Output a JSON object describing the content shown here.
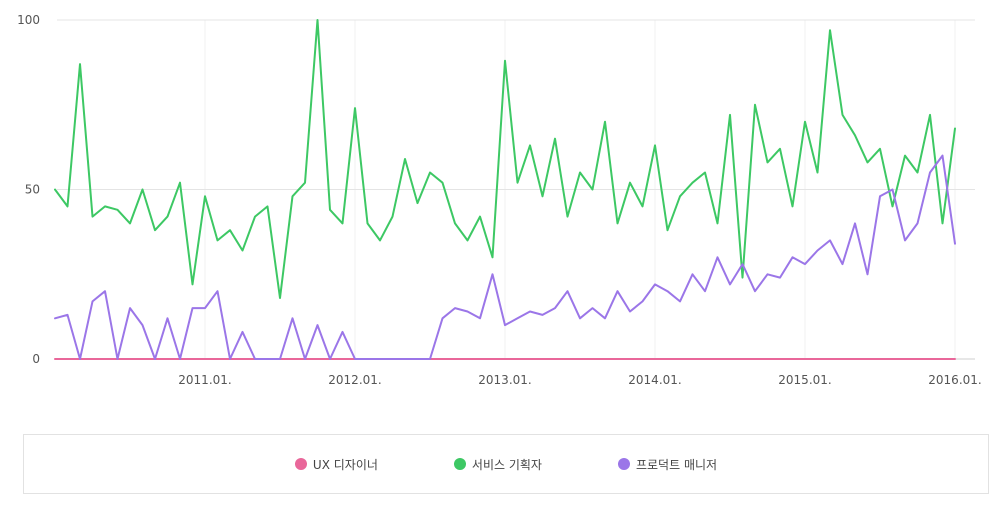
{
  "chart_data": {
    "type": "line",
    "ylim": [
      0,
      100
    ],
    "y_ticks": [
      "0",
      "50",
      "100"
    ],
    "x_range": [
      "2010-01",
      "2016-01"
    ],
    "x_ticks": [
      {
        "label": "2011.01.",
        "value": "2011-01"
      },
      {
        "label": "2012.01.",
        "value": "2012-01"
      },
      {
        "label": "2013.01.",
        "value": "2013-01"
      },
      {
        "label": "2014.01.",
        "value": "2014-01"
      },
      {
        "label": "2015.01.",
        "value": "2015-01"
      },
      {
        "label": "2016.01.",
        "value": "2016-01"
      }
    ],
    "grid": true,
    "legend_position": "bottom",
    "x": [
      "2010-01",
      "2010-02",
      "2010-03",
      "2010-04",
      "2010-05",
      "2010-06",
      "2010-07",
      "2010-08",
      "2010-09",
      "2010-10",
      "2010-11",
      "2010-12",
      "2011-01",
      "2011-02",
      "2011-03",
      "2011-04",
      "2011-05",
      "2011-06",
      "2011-07",
      "2011-08",
      "2011-09",
      "2011-10",
      "2011-11",
      "2011-12",
      "2012-01",
      "2012-02",
      "2012-03",
      "2012-04",
      "2012-05",
      "2012-06",
      "2012-07",
      "2012-08",
      "2012-09",
      "2012-10",
      "2012-11",
      "2012-12",
      "2013-01",
      "2013-02",
      "2013-03",
      "2013-04",
      "2013-05",
      "2013-06",
      "2013-07",
      "2013-08",
      "2013-09",
      "2013-10",
      "2013-11",
      "2013-12",
      "2014-01",
      "2014-02",
      "2014-03",
      "2014-04",
      "2014-05",
      "2014-06",
      "2014-07",
      "2014-08",
      "2014-09",
      "2014-10",
      "2014-11",
      "2014-12",
      "2015-01",
      "2015-02",
      "2015-03",
      "2015-04",
      "2015-05",
      "2015-06",
      "2015-07",
      "2015-08",
      "2015-09",
      "2015-10",
      "2015-11",
      "2015-12",
      "2016-01"
    ],
    "series": [
      {
        "name": "UX 디자이너",
        "color": "#e9679a",
        "values": [
          0,
          0,
          0,
          0,
          0,
          0,
          0,
          0,
          0,
          0,
          0,
          0,
          0,
          0,
          0,
          0,
          0,
          0,
          0,
          0,
          0,
          0,
          0,
          0,
          0,
          0,
          0,
          0,
          0,
          0,
          0,
          0,
          0,
          0,
          0,
          0,
          0,
          0,
          0,
          0,
          0,
          0,
          0,
          0,
          0,
          0,
          0,
          0,
          0,
          0,
          0,
          0,
          0,
          0,
          0,
          0,
          0,
          0,
          0,
          0,
          0,
          0,
          0,
          0,
          0,
          0,
          0,
          0,
          0,
          0,
          0,
          0,
          0
        ]
      },
      {
        "name": "서비스 기획자",
        "color": "#3dc864",
        "values": [
          50,
          45,
          87,
          42,
          45,
          44,
          40,
          50,
          38,
          42,
          52,
          22,
          48,
          35,
          38,
          32,
          42,
          45,
          18,
          48,
          52,
          100,
          44,
          40,
          74,
          40,
          35,
          42,
          59,
          46,
          55,
          52,
          40,
          35,
          42,
          30,
          88,
          52,
          63,
          48,
          65,
          42,
          55,
          50,
          70,
          40,
          52,
          45,
          63,
          38,
          48,
          52,
          55,
          40,
          72,
          24,
          75,
          58,
          62,
          45,
          70,
          55,
          97,
          72,
          66,
          58,
          62,
          45,
          60,
          55,
          72,
          40,
          68
        ]
      },
      {
        "name": "프로덕트 매니저",
        "color": "#9b76e8",
        "values": [
          12,
          13,
          0,
          17,
          20,
          0,
          15,
          10,
          0,
          12,
          0,
          15,
          15,
          20,
          0,
          8,
          0,
          0,
          0,
          12,
          0,
          10,
          0,
          8,
          0,
          0,
          0,
          0,
          0,
          0,
          0,
          12,
          15,
          14,
          12,
          25,
          10,
          12,
          14,
          13,
          15,
          20,
          12,
          15,
          12,
          20,
          14,
          17,
          22,
          20,
          17,
          25,
          20,
          30,
          22,
          28,
          20,
          25,
          24,
          30,
          28,
          32,
          35,
          28,
          40,
          25,
          48,
          50,
          35,
          40,
          55,
          60,
          34
        ]
      }
    ]
  }
}
